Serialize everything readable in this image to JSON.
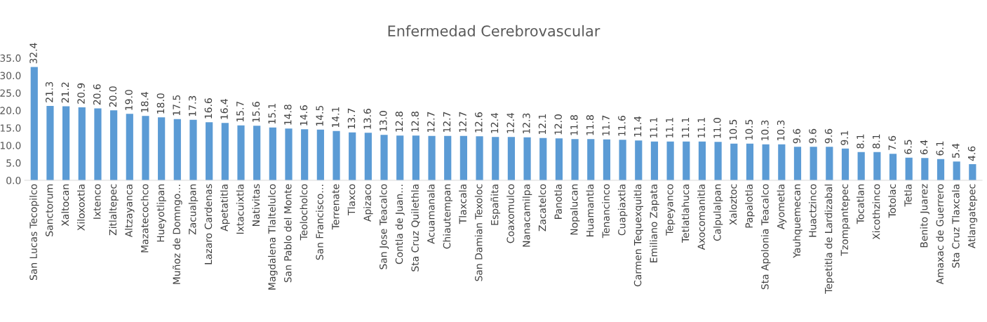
{
  "chart_data": {
    "type": "bar",
    "title": "Enfermedad Cerebrovascular",
    "categories": [
      "San Lucas Tecopilco",
      "Sanctorum",
      "Xaltocan",
      "Xiloxoxtla",
      "Ixtenco",
      "Zitlaltepec",
      "Altzayanca",
      "Mazatecochco",
      "Hueyotlipan",
      "Muñoz de Domngo…",
      "Zacualpan",
      "Lazaro Cardenas",
      "Apetatitla",
      "Ixtacuixtla",
      "Nativitas",
      "Magdalena Tlaltelulco",
      "San Pablo del Monte",
      "Teolocholco",
      "San Francisco…",
      "Terrenate",
      "Tlaxco",
      "Apizaco",
      "San Jose Teacalco",
      "Contla de Juan…",
      "Sta Cruz Quilethla",
      "Acuamanala",
      "Chiautempan",
      "Tlaxcala",
      "San Damian Texoloc",
      "Españita",
      "Coaxomulco",
      "Nanacamilpa",
      "Zacatelco",
      "Panotla",
      "Nopalucan",
      "Huamantla",
      "Tenancinco",
      "Cuapiaxtla",
      "Carmen Tequexquitla",
      "Emiliano Zapata",
      "Tepeyanco",
      "Tetlatlahuca",
      "Axocomanitla",
      "Calpulalpan",
      "Xaloztoc",
      "Papalotla",
      "Sta Apolonia Teacalco",
      "Ayometla",
      "Yauhquemecan",
      "Huactzinco",
      "Tepetitla de Lardizabal",
      "Tzompantepec",
      "Tocatlan",
      "Xicothzinco",
      "Totolac",
      "Tetla",
      "Benito Juarez",
      "Amaxac de Guerrero",
      "Sta Cruz Tlaxcala",
      "Atlangatepec"
    ],
    "values": [
      32.4,
      21.3,
      21.2,
      20.9,
      20.6,
      20.0,
      19.0,
      18.4,
      18.0,
      17.5,
      17.3,
      16.6,
      16.4,
      15.7,
      15.6,
      15.1,
      14.8,
      14.6,
      14.5,
      14.1,
      13.7,
      13.6,
      13.0,
      12.8,
      12.8,
      12.7,
      12.7,
      12.7,
      12.6,
      12.4,
      12.4,
      12.3,
      12.1,
      12.0,
      11.8,
      11.8,
      11.7,
      11.6,
      11.4,
      11.1,
      11.1,
      11.1,
      11.1,
      11.0,
      10.5,
      10.5,
      10.3,
      10.3,
      9.6,
      9.6,
      9.6,
      9.1,
      8.1,
      8.1,
      7.6,
      6.5,
      6.4,
      6.1,
      5.4,
      4.6
    ],
    "color": "#5b9bd5",
    "value_labels": [
      "32.4",
      "21.3",
      "21.2",
      "20.9",
      "20.6",
      "20.0",
      "19.0",
      "18.4",
      "18.0",
      "17.5",
      "17.3",
      "16.6",
      "16.4",
      "15.7",
      "15.6",
      "15.1",
      "14.8",
      "14.6",
      "14.5",
      "14.1",
      "13.7",
      "13.6",
      "13.0",
      "12.8",
      "12.8",
      "12.7",
      "12.7",
      "12.7",
      "12.6",
      "12.4",
      "12.4",
      "12.3",
      "12.1",
      "12.0",
      "11.8",
      "11.8",
      "11.7",
      "11.6",
      "11.4",
      "11.1",
      "11.1",
      "11.1",
      "11.1",
      "11.0",
      "10.5",
      "10.5",
      "10.3",
      "10.3",
      "9.6",
      "9.6",
      "9.6",
      "9.1",
      "8.1",
      "8.1",
      "7.6",
      "6.5",
      "6.4",
      "6.1",
      "5.4",
      "4.6"
    ],
    "grid": false,
    "legend": false,
    "ylim": [
      0,
      35
    ],
    "yticks": [
      {
        "value": 0,
        "label": "0.0"
      },
      {
        "value": 5,
        "label": "5.0"
      },
      {
        "value": 10,
        "label": "10.0"
      },
      {
        "value": 15,
        "label": "15.0"
      },
      {
        "value": 20,
        "label": "20.0"
      },
      {
        "value": 25,
        "label": "25.0"
      },
      {
        "value": 30,
        "label": "30.0"
      },
      {
        "value": 35,
        "label": "35.0"
      }
    ]
  }
}
